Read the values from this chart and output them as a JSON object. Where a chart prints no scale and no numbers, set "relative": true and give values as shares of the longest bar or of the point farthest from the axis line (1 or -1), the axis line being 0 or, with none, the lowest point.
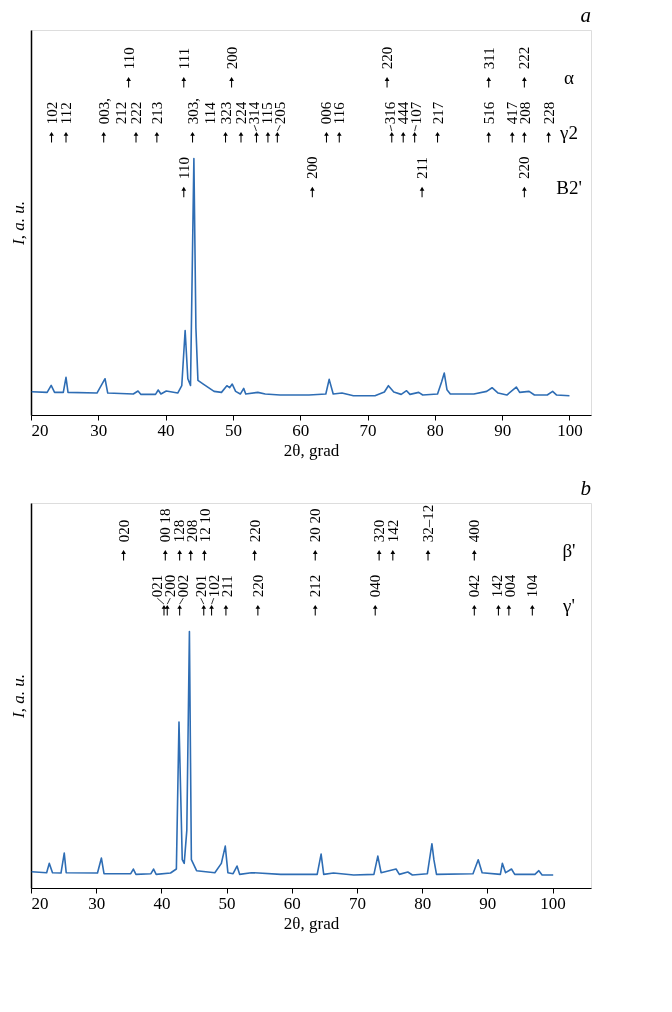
{
  "chart_data": [
    {
      "type": "line",
      "title": "a",
      "xlabel": "2θ, grad",
      "ylabel": "I, a. u.",
      "relative": true,
      "grid": false,
      "xlim": [
        20,
        103.2
      ],
      "xticks": [
        20,
        30,
        40,
        50,
        60,
        70,
        80,
        90,
        100
      ],
      "x": [
        20.1,
        22.4,
        23.0,
        23.5,
        24.8,
        25.2,
        25.5,
        29.8,
        31.0,
        31.4,
        35.2,
        35.9,
        36.3,
        38.5,
        38.9,
        39.3,
        40.1,
        41.8,
        42.4,
        42.9,
        43.3,
        43.7,
        44.2,
        44.5,
        44.8,
        45.6,
        47.2,
        48.3,
        49.1,
        49.5,
        49.9,
        50.4,
        51.1,
        51.6,
        51.9,
        53.7,
        54.8,
        57.0,
        61.3,
        63.8,
        64.3,
        64.9,
        66.2,
        67.9,
        71.1,
        72.5,
        73.1,
        73.9,
        75.0,
        75.8,
        76.3,
        77.6,
        78.2,
        80.4,
        81.0,
        81.4,
        81.8,
        82.3,
        85.8,
        87.7,
        88.5,
        89.4,
        90.7,
        92.1,
        92.6,
        94.0,
        94.8,
        96.7,
        97.5,
        98.1,
        100.0
      ],
      "series": [
        {
          "color": "#2e6db4",
          "values": [
            0.07,
            0.068,
            0.089,
            0.068,
            0.068,
            0.113,
            0.068,
            0.066,
            0.109,
            0.066,
            0.063,
            0.072,
            0.062,
            0.062,
            0.075,
            0.063,
            0.072,
            0.066,
            0.088,
            0.254,
            0.109,
            0.089,
            0.771,
            0.262,
            0.104,
            0.093,
            0.071,
            0.068,
            0.088,
            0.082,
            0.093,
            0.071,
            0.063,
            0.08,
            0.063,
            0.068,
            0.063,
            0.06,
            0.06,
            0.063,
            0.107,
            0.063,
            0.066,
            0.058,
            0.058,
            0.069,
            0.088,
            0.069,
            0.062,
            0.073,
            0.062,
            0.068,
            0.06,
            0.063,
            0.099,
            0.126,
            0.076,
            0.063,
            0.063,
            0.071,
            0.082,
            0.066,
            0.06,
            0.084,
            0.068,
            0.071,
            0.06,
            0.06,
            0.071,
            0.06,
            0.058
          ]
        },
        {
          "type": "scatter",
          "name": "α",
          "color": "#000000",
          "marker": "triangle",
          "x": [
            34.5,
            42.7,
            49.8,
            72.9,
            88.0,
            93.3
          ],
          "values": [
            1,
            1,
            1,
            1,
            1,
            1
          ]
        },
        {
          "type": "scatter",
          "name": "γ2",
          "color": "#000000",
          "marker": "triangle",
          "x": [
            23.05,
            25.2,
            30.8,
            35.6,
            38.7,
            44.0,
            48.9,
            51.2,
            53.5,
            55.2,
            56.6,
            63.9,
            65.8,
            73.6,
            75.3,
            77.0,
            80.4,
            88.0,
            91.5,
            93.3,
            96.9
          ],
          "values": [
            0.835,
            0.835,
            0.835,
            0.835,
            0.835,
            0.835,
            0.835,
            0.835,
            0.835,
            0.835,
            0.835,
            0.835,
            0.835,
            0.835,
            0.835,
            0.835,
            0.835,
            0.835,
            0.835,
            0.835,
            0.835
          ]
        },
        {
          "type": "scatter",
          "name": "B2'",
          "color": "#000000",
          "marker": "triangle",
          "x": [
            42.7,
            61.8,
            78.1,
            93.3
          ],
          "values": [
            0.67,
            0.67,
            0.67,
            0.67
          ]
        }
      ],
      "annotations": [
        {
          "text": "110",
          "x": 34.5,
          "y": 1
        },
        {
          "text": "111",
          "x": 42.7,
          "y": 1
        },
        {
          "text": "200",
          "x": 49.8,
          "y": 1
        },
        {
          "text": "220",
          "x": 72.9,
          "y": 1
        },
        {
          "text": "311",
          "x": 88.0,
          "y": 1
        },
        {
          "text": "222",
          "x": 93.3,
          "y": 1
        },
        {
          "text": "102",
          "x": 23.05,
          "y": 0.835
        },
        {
          "text": "112",
          "x": 25.2,
          "y": 0.835
        },
        {
          "text": "003,\n212",
          "x": 30.8,
          "y": 0.835
        },
        {
          "text": "222",
          "x": 35.6,
          "y": 0.835
        },
        {
          "text": "213",
          "x": 38.7,
          "y": 0.835
        },
        {
          "text": "303,\n114",
          "x": 44.0,
          "y": 0.835
        },
        {
          "text": "323",
          "x": 48.9,
          "y": 0.835
        },
        {
          "text": "224",
          "x": 51.2,
          "y": 0.835
        },
        {
          "text": "314",
          "x": 53.5,
          "y": 0.835
        },
        {
          "text": "115",
          "x": 55.2,
          "y": 0.835
        },
        {
          "text": "205",
          "x": 56.6,
          "y": 0.835
        },
        {
          "text": "006",
          "x": 63.9,
          "y": 0.835
        },
        {
          "text": "116",
          "x": 65.8,
          "y": 0.835
        },
        {
          "text": "316",
          "x": 73.6,
          "y": 0.835
        },
        {
          "text": "444",
          "x": 75.3,
          "y": 0.835
        },
        {
          "text": "107",
          "x": 77.0,
          "y": 0.835
        },
        {
          "text": "217",
          "x": 80.4,
          "y": 0.835
        },
        {
          "text": "516",
          "x": 88.0,
          "y": 0.835
        },
        {
          "text": "417",
          "x": 91.5,
          "y": 0.835
        },
        {
          "text": "208",
          "x": 93.3,
          "y": 0.835
        },
        {
          "text": "228",
          "x": 96.9,
          "y": 0.835
        },
        {
          "text": "110",
          "x": 42.7,
          "y": 0.67
        },
        {
          "text": "200",
          "x": 61.8,
          "y": 0.67
        },
        {
          "text": "211",
          "x": 78.1,
          "y": 0.67
        },
        {
          "text": "220",
          "x": 93.3,
          "y": 0.67
        }
      ]
    },
    {
      "type": "line",
      "title": "b",
      "xlabel": "2θ, grad",
      "ylabel": "I, a. u.",
      "relative": true,
      "grid": false,
      "xlim": [
        20,
        105.9
      ],
      "xticks": [
        20,
        30,
        40,
        50,
        60,
        70,
        80,
        90,
        100
      ],
      "x": [
        20.1,
        22.4,
        22.8,
        23.3,
        24.6,
        25.1,
        25.4,
        30.2,
        30.8,
        31.2,
        35.3,
        35.7,
        36.1,
        38.4,
        38.8,
        39.2,
        41.4,
        42.3,
        42.7,
        43.2,
        43.5,
        43.9,
        44.3,
        44.6,
        45.4,
        46.8,
        48.2,
        49.2,
        49.8,
        50.2,
        51.0,
        51.6,
        52.0,
        53.8,
        54.9,
        58.3,
        63.9,
        64.5,
        64.9,
        66.4,
        69.5,
        72.6,
        73.2,
        73.7,
        76.0,
        76.5,
        77.8,
        78.5,
        80.8,
        81.5,
        81.8,
        82.2,
        87.8,
        88.6,
        89.2,
        92.0,
        92.3,
        92.8,
        93.7,
        94.2,
        97.3,
        97.9,
        98.4,
        100.1
      ],
      "series": [
        {
          "color": "#2e6db4",
          "values": [
            0.049,
            0.046,
            0.074,
            0.046,
            0.045,
            0.105,
            0.046,
            0.045,
            0.09,
            0.043,
            0.043,
            0.057,
            0.041,
            0.043,
            0.057,
            0.041,
            0.045,
            0.057,
            0.499,
            0.085,
            0.074,
            0.173,
            0.771,
            0.085,
            0.052,
            0.049,
            0.046,
            0.074,
            0.126,
            0.046,
            0.043,
            0.066,
            0.041,
            0.046,
            0.045,
            0.041,
            0.041,
            0.102,
            0.041,
            0.045,
            0.039,
            0.041,
            0.096,
            0.046,
            0.057,
            0.041,
            0.048,
            0.039,
            0.043,
            0.133,
            0.085,
            0.041,
            0.043,
            0.085,
            0.046,
            0.041,
            0.074,
            0.046,
            0.057,
            0.041,
            0.041,
            0.052,
            0.039,
            0.039
          ]
        },
        {
          "type": "scatter",
          "name": "β'",
          "color": "#000000",
          "marker": "triangle",
          "x": [
            34.2,
            40.6,
            42.8,
            44.5,
            46.6,
            54.3,
            63.6,
            73.4,
            75.5,
            80.9,
            88.0
          ],
          "values": [
            1,
            1,
            1,
            1,
            1,
            1,
            1,
            1,
            1,
            1,
            1
          ]
        },
        {
          "type": "scatter",
          "name": "γ'",
          "color": "#000000",
          "marker": "triangle",
          "x": [
            40.4,
            40.9,
            42.8,
            46.5,
            47.7,
            49.9,
            54.8,
            63.6,
            72.8,
            88.0,
            91.7,
            93.3,
            96.9
          ],
          "values": [
            0.835,
            0.835,
            0.835,
            0.835,
            0.835,
            0.835,
            0.835,
            0.835,
            0.835,
            0.835,
            0.835,
            0.835,
            0.835
          ]
        }
      ],
      "annotations": [
        {
          "text": "020",
          "x": 34.2,
          "y": 1
        },
        {
          "text": "00 18",
          "x": 40.6,
          "y": 1
        },
        {
          "text": "128",
          "x": 42.8,
          "y": 1
        },
        {
          "text": "208",
          "x": 44.5,
          "y": 1
        },
        {
          "text": "12 10",
          "x": 46.6,
          "y": 1
        },
        {
          "text": "220",
          "x": 54.3,
          "y": 1
        },
        {
          "text": "20 20",
          "x": 63.6,
          "y": 1
        },
        {
          "text": "320",
          "x": 73.4,
          "y": 1
        },
        {
          "text": "142",
          "x": 75.5,
          "y": 1
        },
        {
          "text": "32–12",
          "x": 80.9,
          "y": 1
        },
        {
          "text": "400",
          "x": 88.0,
          "y": 1
        },
        {
          "text": "021",
          "x": 40.4,
          "y": 0.835
        },
        {
          "text": "200",
          "x": 40.9,
          "y": 0.835
        },
        {
          "text": "002",
          "x": 42.8,
          "y": 0.835
        },
        {
          "text": "201",
          "x": 46.5,
          "y": 0.835
        },
        {
          "text": "102",
          "x": 47.7,
          "y": 0.835
        },
        {
          "text": "211",
          "x": 49.9,
          "y": 0.835
        },
        {
          "text": "220",
          "x": 54.8,
          "y": 0.835
        },
        {
          "text": "212",
          "x": 63.6,
          "y": 0.835
        },
        {
          "text": "040",
          "x": 72.8,
          "y": 0.835
        },
        {
          "text": "042",
          "x": 88.0,
          "y": 0.835
        },
        {
          "text": "142",
          "x": 91.7,
          "y": 0.835
        },
        {
          "text": "004",
          "x": 93.3,
          "y": 0.835
        },
        {
          "text": "104",
          "x": 96.9,
          "y": 0.835
        }
      ]
    }
  ]
}
